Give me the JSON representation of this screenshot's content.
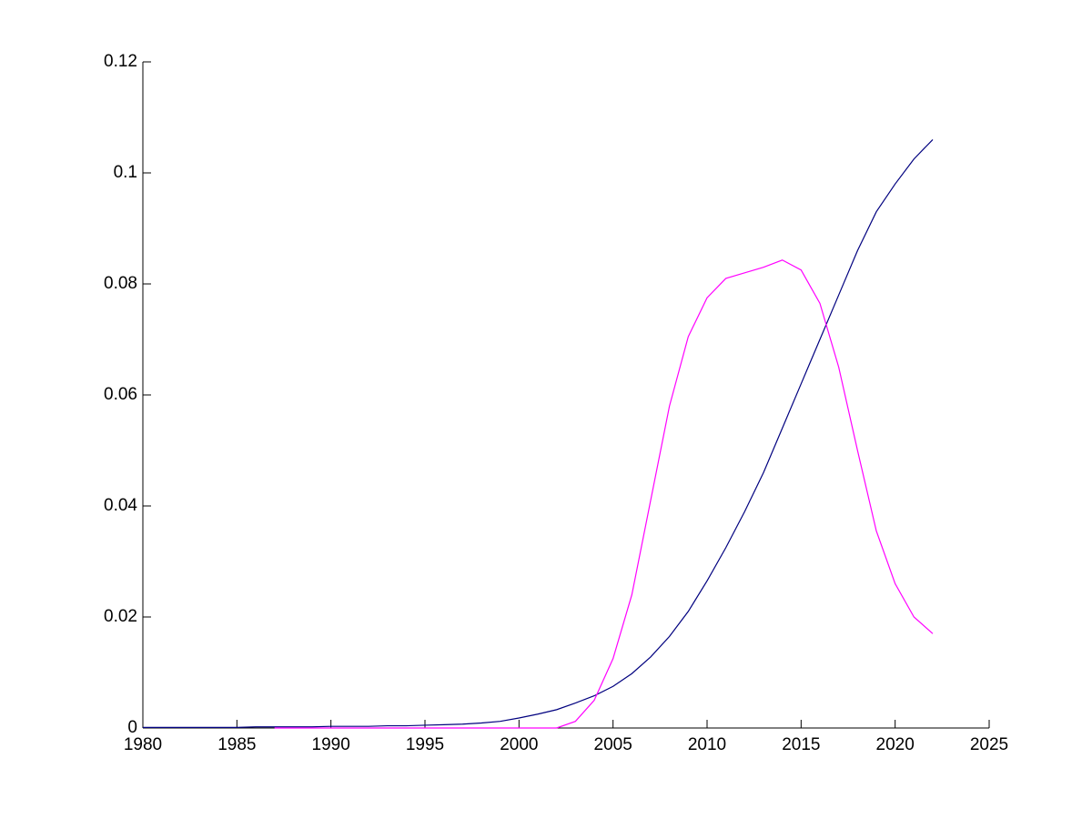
{
  "chart_data": {
    "type": "line",
    "x": [
      1980,
      1981,
      1982,
      1983,
      1984,
      1985,
      1986,
      1987,
      1988,
      1989,
      1990,
      1991,
      1992,
      1993,
      1994,
      1995,
      1996,
      1997,
      1998,
      1999,
      2000,
      2001,
      2002,
      2003,
      2004,
      2005,
      2006,
      2007,
      2008,
      2009,
      2010,
      2011,
      2012,
      2013,
      2014,
      2015,
      2016,
      2017,
      2018,
      2019,
      2020,
      2021,
      2022
    ],
    "series": [
      {
        "color": "#00007f",
        "values": [
          0.0001,
          0.0001,
          0.0001,
          0.0001,
          0.0001,
          0.0001,
          0.0002,
          0.0002,
          0.0002,
          0.0002,
          0.0003,
          0.0003,
          0.0003,
          0.0004,
          0.0004,
          0.0005,
          0.0006,
          0.0007,
          0.0009,
          0.0012,
          0.0018,
          0.0025,
          0.0033,
          0.0045,
          0.0058,
          0.0075,
          0.0098,
          0.0128,
          0.0165,
          0.021,
          0.0265,
          0.0325,
          0.039,
          0.046,
          0.054,
          0.062,
          0.07,
          0.078,
          0.086,
          0.093,
          0.098,
          0.1025,
          0.106
        ]
      },
      {
        "color": "#ff00ff",
        "values": [
          null,
          null,
          null,
          null,
          null,
          null,
          null,
          0,
          0,
          0,
          0,
          0,
          0,
          0,
          0,
          0,
          0,
          0,
          0,
          0,
          0,
          0,
          0,
          0.0012,
          0.005,
          0.0125,
          0.024,
          0.041,
          0.058,
          0.0705,
          0.0775,
          0.081,
          0.082,
          0.083,
          0.0843,
          0.0825,
          0.0765,
          0.065,
          0.05,
          0.0355,
          0.026,
          0.02,
          0.017
        ]
      }
    ],
    "xlim": [
      1980,
      2025
    ],
    "xticks": [
      1980,
      1985,
      1990,
      1995,
      2000,
      2005,
      2010,
      2015,
      2020,
      2025
    ],
    "ylim": [
      0,
      0.12
    ],
    "yticks": [
      0,
      0.02,
      0.04,
      0.06,
      0.08,
      0.1,
      0.12
    ]
  }
}
